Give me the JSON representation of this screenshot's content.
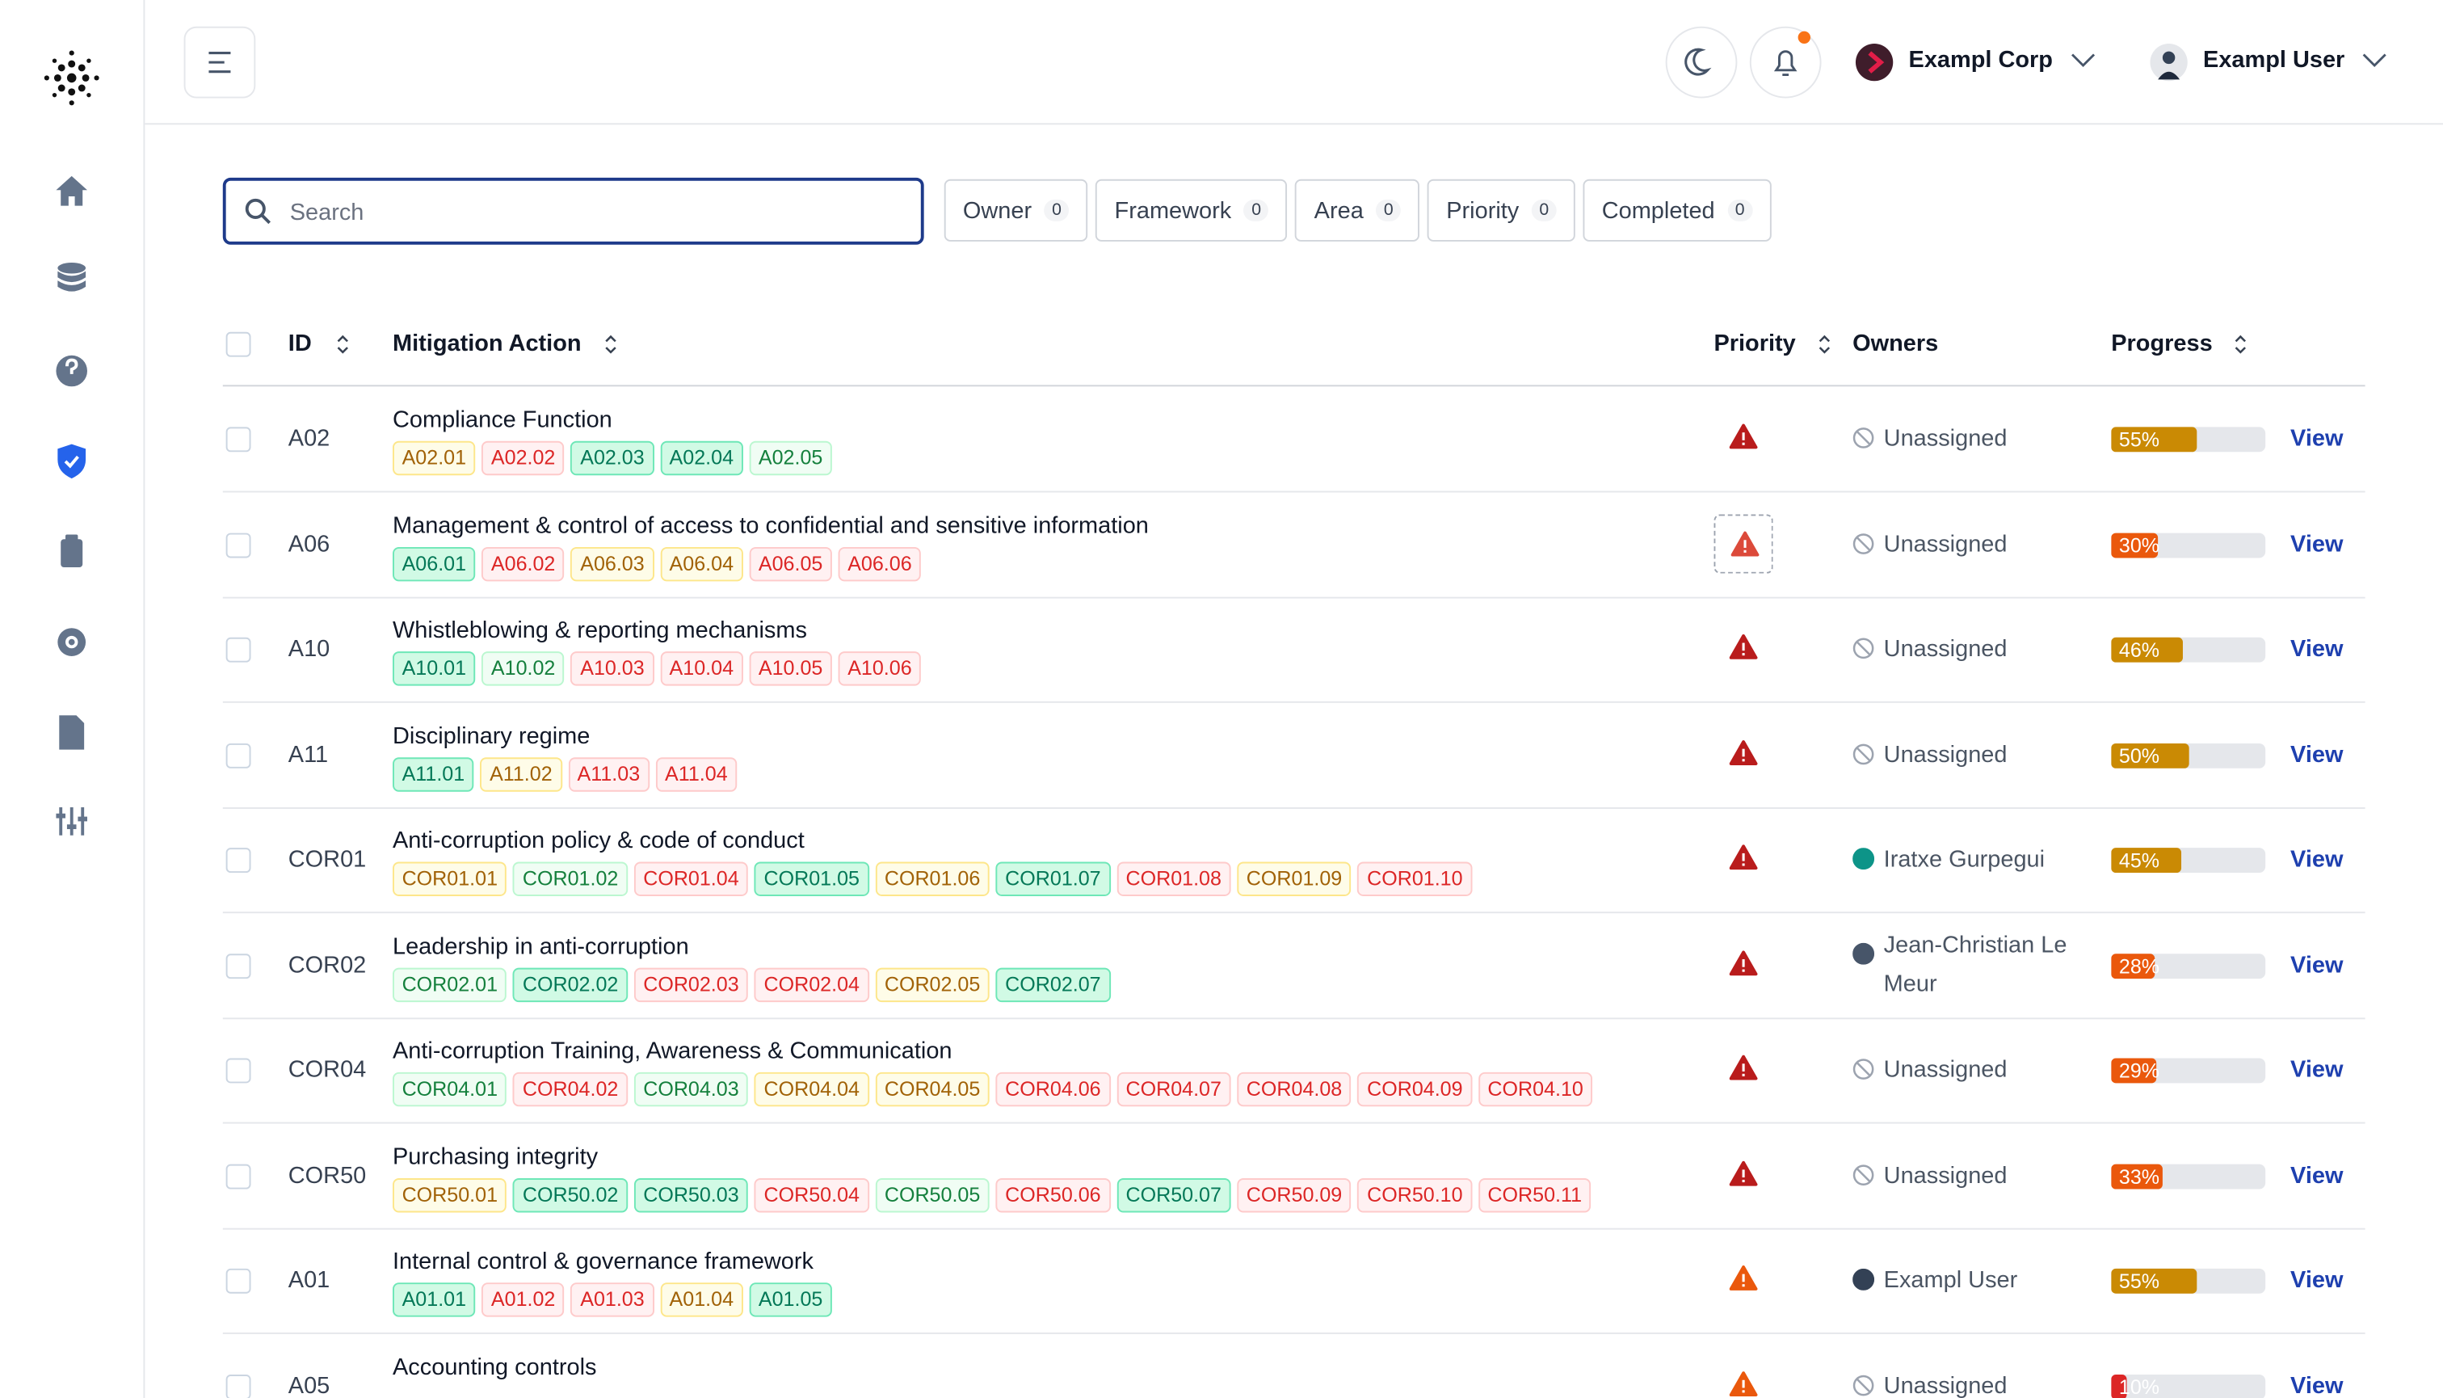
{
  "header": {
    "org": "Exampl Corp",
    "user": "Exampl User"
  },
  "filters": {
    "search": "Search",
    "buttons": [
      {
        "label": "Owner",
        "count": 0
      },
      {
        "label": "Framework",
        "count": 0
      },
      {
        "label": "Area",
        "count": 0
      },
      {
        "label": "Priority",
        "count": 0
      },
      {
        "label": "Completed",
        "count": 0
      }
    ]
  },
  "table": {
    "columns": [
      "ID",
      "Mitigation Action",
      "Priority",
      "Owners",
      "Progress"
    ],
    "rows": [
      {
        "id": "A02",
        "title": "Compliance Function",
        "tags": [
          {
            "label": "A02.01",
            "color": "amber"
          },
          {
            "label": "A02.02",
            "color": "red"
          },
          {
            "label": "A02.03",
            "color": "green"
          },
          {
            "label": "A02.04",
            "color": "green"
          },
          {
            "label": "A02.05",
            "color": "mint"
          }
        ],
        "priority_color": "#b91c1c",
        "owner": "Unassigned",
        "progress": 55,
        "progress_label": "55%",
        "progress_color": "#ca8a04",
        "action": "View"
      },
      {
        "id": "A06",
        "title": "Management & control of access to confidential and sensitive information",
        "tags": [
          {
            "label": "A06.01",
            "color": "green"
          },
          {
            "label": "A06.02",
            "color": "red"
          },
          {
            "label": "A06.03",
            "color": "amber"
          },
          {
            "label": "A06.04",
            "color": "amber"
          },
          {
            "label": "A06.05",
            "color": "red"
          },
          {
            "label": "A06.06",
            "color": "red"
          }
        ],
        "priority_color": "#dc4a3a",
        "owner": "Unassigned",
        "progress": 30,
        "progress_label": "30%",
        "progress_color": "#ea580c",
        "action": "View"
      },
      {
        "id": "A10",
        "title": "Whistleblowing & reporting mechanisms",
        "tags": [
          {
            "label": "A10.01",
            "color": "green"
          },
          {
            "label": "A10.02",
            "color": "mint"
          },
          {
            "label": "A10.03",
            "color": "red"
          },
          {
            "label": "A10.04",
            "color": "red"
          },
          {
            "label": "A10.05",
            "color": "red"
          },
          {
            "label": "A10.06",
            "color": "red"
          }
        ],
        "priority_color": "#b91c1c",
        "owner": "Unassigned",
        "progress": 46,
        "progress_label": "46%",
        "progress_color": "#ca8a04",
        "action": "View"
      },
      {
        "id": "A11",
        "title": "Disciplinary regime",
        "tags": [
          {
            "label": "A11.01",
            "color": "green"
          },
          {
            "label": "A11.02",
            "color": "amber"
          },
          {
            "label": "A11.03",
            "color": "red"
          },
          {
            "label": "A11.04",
            "color": "red"
          }
        ],
        "priority_color": "#b91c1c",
        "owner": "Unassigned",
        "progress": 50,
        "progress_label": "50%",
        "progress_color": "#ca8a04",
        "action": "View"
      },
      {
        "id": "COR01",
        "title": "Anti-corruption policy & code of conduct",
        "tags": [
          {
            "label": "COR01.01",
            "color": "amber"
          },
          {
            "label": "COR01.02",
            "color": "mint"
          },
          {
            "label": "COR01.04",
            "color": "red"
          },
          {
            "label": "COR01.05",
            "color": "green"
          },
          {
            "label": "COR01.06",
            "color": "amber"
          },
          {
            "label": "COR01.07",
            "color": "green"
          },
          {
            "label": "COR01.08",
            "color": "red"
          },
          {
            "label": "COR01.09",
            "color": "amber"
          },
          {
            "label": "COR01.10",
            "color": "red"
          }
        ],
        "priority_color": "#b91c1c",
        "owner": "Iratxe Gurpegui",
        "avatar_color": "#0d9488",
        "progress": 45,
        "progress_label": "45%",
        "progress_color": "#ca8a04",
        "action": "View"
      },
      {
        "id": "COR02",
        "title": "Leadership in anti-corruption",
        "tags": [
          {
            "label": "COR02.01",
            "color": "mint"
          },
          {
            "label": "COR02.02",
            "color": "green"
          },
          {
            "label": "COR02.03",
            "color": "red"
          },
          {
            "label": "COR02.04",
            "color": "red"
          },
          {
            "label": "COR02.05",
            "color": "amber"
          },
          {
            "label": "COR02.07",
            "color": "green"
          }
        ],
        "priority_color": "#b91c1c",
        "owner": "Jean-Christian Le Meur",
        "avatar_color": "#475569",
        "progress": 28,
        "progress_label": "28%",
        "progress_color": "#ea580c",
        "action": "View"
      },
      {
        "id": "COR04",
        "title": "Anti-corruption Training, Awareness & Communication",
        "tags": [
          {
            "label": "COR04.01",
            "color": "mint"
          },
          {
            "label": "COR04.02",
            "color": "red"
          },
          {
            "label": "COR04.03",
            "color": "mint"
          },
          {
            "label": "COR04.04",
            "color": "amber"
          },
          {
            "label": "COR04.05",
            "color": "amber"
          },
          {
            "label": "COR04.06",
            "color": "red"
          },
          {
            "label": "COR04.07",
            "color": "red"
          },
          {
            "label": "COR04.08",
            "color": "red"
          },
          {
            "label": "COR04.09",
            "color": "red"
          },
          {
            "label": "COR04.10",
            "color": "red"
          }
        ],
        "priority_color": "#b91c1c",
        "owner": "Unassigned",
        "progress": 29,
        "progress_label": "29%",
        "progress_color": "#ea580c",
        "action": "View"
      },
      {
        "id": "COR50",
        "title": "Purchasing integrity",
        "tags": [
          {
            "label": "COR50.01",
            "color": "amber"
          },
          {
            "label": "COR50.02",
            "color": "green"
          },
          {
            "label": "COR50.03",
            "color": "green"
          },
          {
            "label": "COR50.04",
            "color": "red"
          },
          {
            "label": "COR50.05",
            "color": "mint"
          },
          {
            "label": "COR50.06",
            "color": "red"
          },
          {
            "label": "COR50.07",
            "color": "green"
          },
          {
            "label": "COR50.09",
            "color": "red"
          },
          {
            "label": "COR50.10",
            "color": "red"
          },
          {
            "label": "COR50.11",
            "color": "red"
          }
        ],
        "priority_color": "#b91c1c",
        "owner": "Unassigned",
        "progress": 33,
        "progress_label": "33%",
        "progress_color": "#ea580c",
        "action": "View"
      },
      {
        "id": "A01",
        "title": "Internal control & governance framework",
        "tags": [
          {
            "label": "A01.01",
            "color": "green"
          },
          {
            "label": "A01.02",
            "color": "red"
          },
          {
            "label": "A01.03",
            "color": "red"
          },
          {
            "label": "A01.04",
            "color": "amber"
          },
          {
            "label": "A01.05",
            "color": "green"
          }
        ],
        "priority_color": "#ea580c",
        "owner": "Exampl User",
        "avatar_color": "#334155",
        "progress": 55,
        "progress_label": "55%",
        "progress_color": "#ca8a04",
        "action": "View"
      },
      {
        "id": "A05",
        "title": "Accounting controls",
        "tags": [],
        "priority_color": "#ea580c",
        "owner": "Unassigned",
        "progress": 10,
        "progress_label": "10%",
        "progress_color": "#dc2626",
        "action": "View"
      }
    ]
  }
}
